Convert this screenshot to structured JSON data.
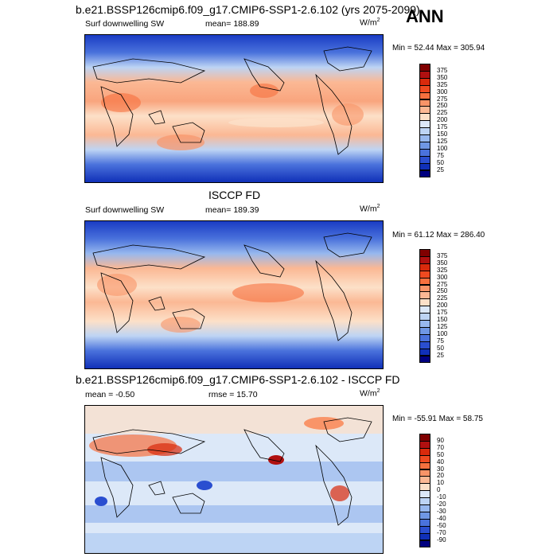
{
  "season": "ANN",
  "panels": [
    {
      "id": "model",
      "title": "b.e21.BSSP126cmip6.f09_g17.CMIP6-SSP1-2.6.102 (yrs 2075-2099)",
      "left_label": "Surf downwelling SW",
      "mid_label": "mean= 188.89",
      "units": "W/m",
      "units_sup": "2",
      "minmax": "Min = 52.44 Max = 305.94",
      "colorbar": {
        "labels": [
          "375",
          "350",
          "325",
          "300",
          "275",
          "250",
          "225",
          "200",
          "175",
          "150",
          "125",
          "100",
          "75",
          "50",
          "25"
        ],
        "colors": [
          "#800000",
          "#b01010",
          "#d92a0c",
          "#ef4a20",
          "#f7703e",
          "#f99468",
          "#fbb894",
          "#fce0c8",
          "#dce8f8",
          "#bdd4f4",
          "#97b8ee",
          "#6f97e4",
          "#4a72dc",
          "#2a4ed0",
          "#1030b8",
          "#000080"
        ]
      }
    },
    {
      "id": "obs",
      "title": "ISCCP FD",
      "left_label": "Surf downwelling SW",
      "mid_label": "mean= 189.39",
      "units": "W/m",
      "units_sup": "2",
      "minmax": "Min = 61.12 Max = 286.40",
      "colorbar": {
        "labels": [
          "375",
          "350",
          "325",
          "300",
          "275",
          "250",
          "225",
          "200",
          "175",
          "150",
          "125",
          "100",
          "75",
          "50",
          "25"
        ],
        "colors": [
          "#800000",
          "#b01010",
          "#d92a0c",
          "#ef4a20",
          "#f7703e",
          "#f99468",
          "#fbb894",
          "#fce0c8",
          "#dce8f8",
          "#bdd4f4",
          "#97b8ee",
          "#6f97e4",
          "#4a72dc",
          "#2a4ed0",
          "#1030b8",
          "#000080"
        ]
      }
    },
    {
      "id": "diff",
      "title": "b.e21.BSSP126cmip6.f09_g17.CMIP6-SSP1-2.6.102 - ISCCP FD",
      "left_label": "mean = -0.50",
      "mid_label": "rmse = 15.70",
      "units": "W/m",
      "units_sup": "2",
      "minmax": "Min = -55.91 Max = 58.75",
      "colorbar": {
        "labels": [
          "90",
          "70",
          "50",
          "40",
          "30",
          "20",
          "10",
          "0",
          "-10",
          "-20",
          "-30",
          "-40",
          "-50",
          "-70",
          "-90"
        ],
        "colors": [
          "#800000",
          "#b01010",
          "#d92a0c",
          "#ef4a20",
          "#f7703e",
          "#f99468",
          "#fbb894",
          "#fce0c8",
          "#dce8f8",
          "#bdd4f4",
          "#97b8ee",
          "#6f97e4",
          "#4a72dc",
          "#2a4ed0",
          "#1030b8",
          "#000080"
        ]
      }
    }
  ]
}
